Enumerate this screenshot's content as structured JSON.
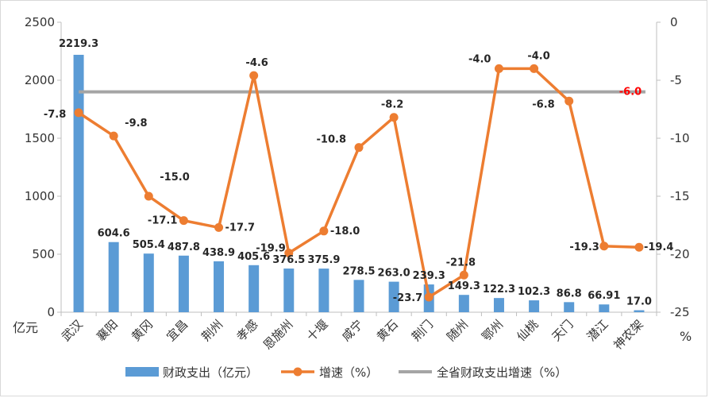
{
  "chart_data": {
    "type": "bar",
    "categories": [
      "武汉",
      "襄阳",
      "黄冈",
      "宜昌",
      "荆州",
      "孝感",
      "恩施州",
      "十堰",
      "咸宁",
      "黄石",
      "荆门",
      "随州",
      "鄂州",
      "仙桃",
      "天门",
      "潜江",
      "神农架"
    ],
    "series": [
      {
        "name": "财政支出（亿元）",
        "type": "bar",
        "axis": "left",
        "color": "#5b9bd5",
        "values": [
          2219.3,
          604.6,
          505.4,
          487.8,
          438.9,
          405.6,
          376.5,
          375.9,
          278.5,
          263.0,
          239.3,
          149.3,
          122.3,
          102.3,
          86.8,
          66.91,
          17.0
        ],
        "labels": [
          "2219.3",
          "604.6",
          "505.4",
          "487.8",
          "438.9",
          "405.6",
          "376.5",
          "375.9",
          "278.5",
          "263.0",
          "239.3",
          "149.3",
          "122.3",
          "102.3",
          "86.8",
          "66.91",
          "17.0"
        ]
      },
      {
        "name": "增速（%）",
        "type": "line",
        "axis": "right",
        "color": "#ed7d31",
        "values": [
          -7.8,
          -9.8,
          -15.0,
          -17.1,
          -17.7,
          -4.6,
          -19.9,
          -18.0,
          -10.8,
          -8.2,
          -23.7,
          -21.8,
          -4.0,
          -4.0,
          -6.8,
          -19.3,
          -19.4
        ],
        "labels": [
          "-7.8",
          "-9.8",
          "-15.0",
          "-17.1",
          "-17.7",
          "-4.6",
          "-19.9",
          "-18.0",
          "-10.8",
          "-8.2",
          "-23.7",
          "-21.8",
          "-4.0",
          "-4.0",
          "-6.8",
          "-19.3",
          "-19.4"
        ]
      },
      {
        "name": "全省财政支出增速（%）",
        "type": "line",
        "axis": "right",
        "color": "#a5a5a5",
        "value": -6.0,
        "label": "-6.0",
        "label_color": "#ff0000"
      }
    ],
    "y_left": {
      "min": 0,
      "max": 2500,
      "step": 500,
      "ticks": [
        "0",
        "500",
        "1000",
        "1500",
        "2000",
        "2500"
      ],
      "unit": "亿元"
    },
    "y_right": {
      "min": -25,
      "max": 0,
      "step": 5,
      "ticks": [
        "-25",
        "-20",
        "-15",
        "-10",
        "-5",
        "0"
      ],
      "unit": "%"
    },
    "grid": false,
    "legend": "bottom"
  }
}
